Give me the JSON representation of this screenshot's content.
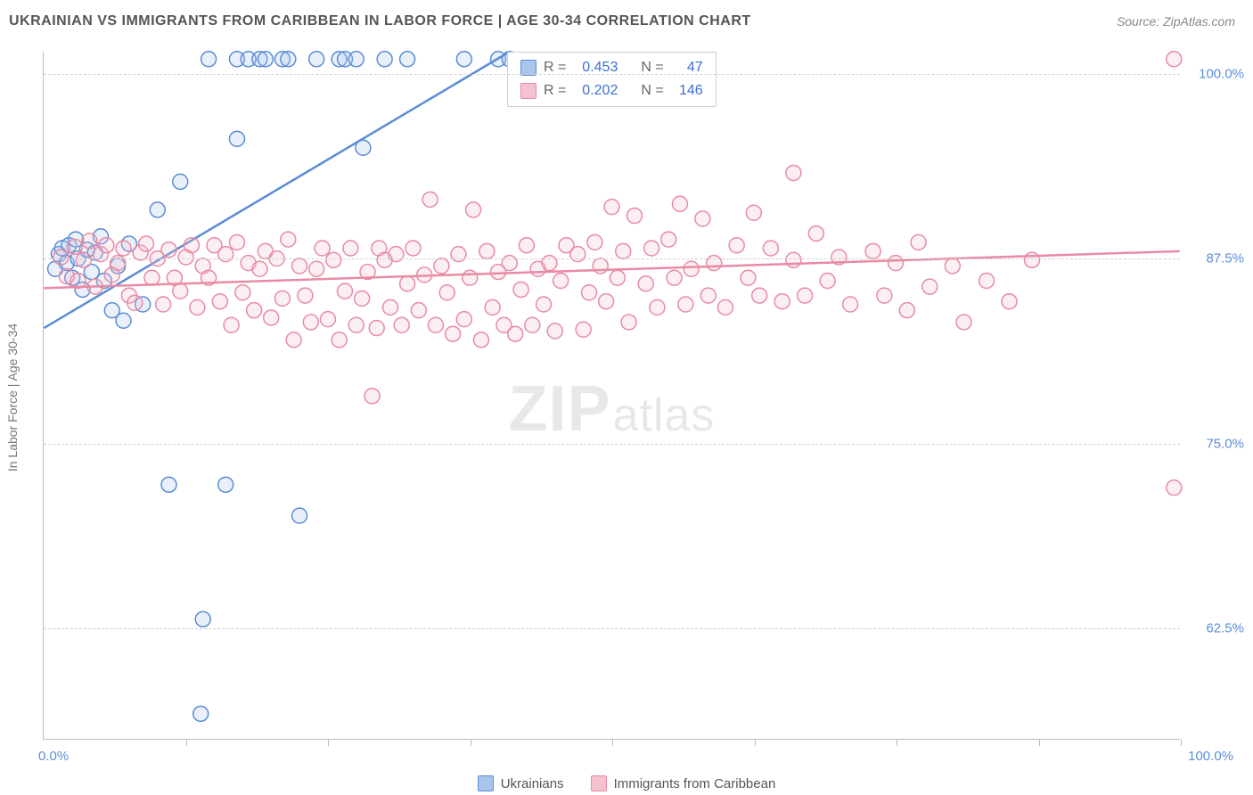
{
  "title": "UKRAINIAN VS IMMIGRANTS FROM CARIBBEAN IN LABOR FORCE | AGE 30-34 CORRELATION CHART",
  "source": "Source: ZipAtlas.com",
  "y_axis_title": "In Labor Force | Age 30-34",
  "watermark": {
    "part1": "ZIP",
    "part2": "atlas"
  },
  "chart": {
    "type": "scatter",
    "xlim": [
      0,
      100
    ],
    "ylim": [
      55,
      101.5
    ],
    "y_gridlines": [
      62.5,
      75,
      87.5,
      100
    ],
    "y_tick_labels": [
      "62.5%",
      "75.0%",
      "87.5%",
      "100.0%"
    ],
    "x_ticks": [
      12.5,
      25,
      37.5,
      50,
      62.5,
      75,
      87.5,
      100
    ],
    "x_label_min": "0.0%",
    "x_label_max": "100.0%",
    "grid_color": "#d0d0d0",
    "axis_color": "#bbbbbb",
    "marker_radius": 8.5,
    "series": [
      {
        "id": "ukr",
        "label": "Ukrainians",
        "color_stroke": "#5b8dd6",
        "color_fill": "#a9c5ec",
        "R": "0.453",
        "N": "47",
        "trend": {
          "x1": 0,
          "y1": 82.8,
          "x2": 41,
          "y2": 101.5
        },
        "points": [
          [
            1,
            86.8
          ],
          [
            1.3,
            87.8
          ],
          [
            1.6,
            88.2
          ],
          [
            2,
            87.2
          ],
          [
            2.2,
            88.4
          ],
          [
            2.5,
            86.2
          ],
          [
            2.8,
            88.8
          ],
          [
            3,
            87.5
          ],
          [
            3.4,
            85.4
          ],
          [
            3.8,
            88.1
          ],
          [
            4.2,
            86.6
          ],
          [
            4.5,
            87.9
          ],
          [
            5,
            89
          ],
          [
            5.3,
            86.0
          ],
          [
            6,
            84.0
          ],
          [
            6.5,
            87.0
          ],
          [
            7,
            83.3
          ],
          [
            7.5,
            88.5
          ],
          [
            8.7,
            84.4
          ],
          [
            10,
            90.8
          ],
          [
            11,
            72.2
          ],
          [
            12,
            92.7
          ],
          [
            13.8,
            56.7
          ],
          [
            14,
            63.1
          ],
          [
            14.5,
            101
          ],
          [
            16,
            72.2
          ],
          [
            17,
            101
          ],
          [
            17,
            95.6
          ],
          [
            18,
            101
          ],
          [
            19,
            101
          ],
          [
            19.5,
            101
          ],
          [
            21,
            101
          ],
          [
            21.5,
            101
          ],
          [
            22.5,
            70.1
          ],
          [
            24,
            101
          ],
          [
            26,
            101
          ],
          [
            26.5,
            101
          ],
          [
            27.5,
            101
          ],
          [
            28.1,
            95
          ],
          [
            30,
            101
          ],
          [
            32,
            101
          ],
          [
            37,
            101
          ],
          [
            40,
            101
          ],
          [
            41,
            101
          ]
        ]
      },
      {
        "id": "car",
        "label": "Immigrants from Caribbean",
        "color_stroke": "#e88ba3",
        "color_fill": "#f5c0cf",
        "R": "0.202",
        "N": "146",
        "trend": {
          "x1": 0,
          "y1": 85.5,
          "x2": 100,
          "y2": 88.0
        },
        "points": [
          [
            1.5,
            87.6
          ],
          [
            2,
            86.3
          ],
          [
            2.7,
            88.3
          ],
          [
            3,
            86
          ],
          [
            3.5,
            87.4
          ],
          [
            4,
            88.7
          ],
          [
            4.5,
            85.6
          ],
          [
            5,
            87.8
          ],
          [
            5.5,
            88.4
          ],
          [
            6,
            86.4
          ],
          [
            6.5,
            87.2
          ],
          [
            7,
            88.2
          ],
          [
            7.5,
            85.0
          ],
          [
            8,
            84.5
          ],
          [
            8.5,
            87.9
          ],
          [
            9,
            88.5
          ],
          [
            9.5,
            86.2
          ],
          [
            10,
            87.5
          ],
          [
            10.5,
            84.4
          ],
          [
            11,
            88.1
          ],
          [
            11.5,
            86.2
          ],
          [
            12,
            85.3
          ],
          [
            12.5,
            87.6
          ],
          [
            13,
            88.4
          ],
          [
            13.5,
            84.2
          ],
          [
            14,
            87.0
          ],
          [
            14.5,
            86.2
          ],
          [
            15,
            88.4
          ],
          [
            15.5,
            84.6
          ],
          [
            16,
            87.8
          ],
          [
            16.5,
            83.0
          ],
          [
            17,
            88.6
          ],
          [
            17.5,
            85.2
          ],
          [
            18,
            87.2
          ],
          [
            18.5,
            84.0
          ],
          [
            19,
            86.8
          ],
          [
            19.5,
            88.0
          ],
          [
            20,
            83.5
          ],
          [
            20.5,
            87.5
          ],
          [
            21,
            84.8
          ],
          [
            21.5,
            88.8
          ],
          [
            22,
            82.0
          ],
          [
            22.5,
            87.0
          ],
          [
            23,
            85.0
          ],
          [
            23.5,
            83.2
          ],
          [
            24,
            86.8
          ],
          [
            24.5,
            88.2
          ],
          [
            25,
            83.4
          ],
          [
            25.5,
            87.4
          ],
          [
            26,
            82.0
          ],
          [
            26.5,
            85.3
          ],
          [
            27,
            88.2
          ],
          [
            27.5,
            83.0
          ],
          [
            28,
            84.8
          ],
          [
            28.5,
            86.6
          ],
          [
            28.9,
            78.2
          ],
          [
            29.5,
            88.2
          ],
          [
            29.3,
            82.8
          ],
          [
            30,
            87.4
          ],
          [
            30.5,
            84.2
          ],
          [
            31,
            87.8
          ],
          [
            31.5,
            83.0
          ],
          [
            32,
            85.8
          ],
          [
            32.5,
            88.2
          ],
          [
            33,
            84.0
          ],
          [
            33.5,
            86.4
          ],
          [
            34,
            91.5
          ],
          [
            34.5,
            83.0
          ],
          [
            35,
            87.0
          ],
          [
            35.5,
            85.2
          ],
          [
            36,
            82.4
          ],
          [
            36.5,
            87.8
          ],
          [
            37,
            83.4
          ],
          [
            37.5,
            86.2
          ],
          [
            37.8,
            90.8
          ],
          [
            38.5,
            82.0
          ],
          [
            39,
            88.0
          ],
          [
            39.5,
            84.2
          ],
          [
            40,
            86.6
          ],
          [
            40.5,
            83.0
          ],
          [
            41,
            87.2
          ],
          [
            41.5,
            82.4
          ],
          [
            42,
            85.4
          ],
          [
            42.5,
            88.4
          ],
          [
            43,
            83.0
          ],
          [
            43.5,
            86.8
          ],
          [
            44,
            84.4
          ],
          [
            44.5,
            87.2
          ],
          [
            45,
            82.6
          ],
          [
            45.5,
            86.0
          ],
          [
            46,
            88.4
          ],
          [
            47,
            87.8
          ],
          [
            47.5,
            82.7
          ],
          [
            48,
            85.2
          ],
          [
            48.5,
            88.6
          ],
          [
            49,
            87.0
          ],
          [
            49.5,
            84.6
          ],
          [
            50,
            91.0
          ],
          [
            50.5,
            86.2
          ],
          [
            51,
            88.0
          ],
          [
            51.5,
            83.2
          ],
          [
            52,
            90.4
          ],
          [
            53,
            85.8
          ],
          [
            53.5,
            88.2
          ],
          [
            54,
            84.2
          ],
          [
            55,
            88.8
          ],
          [
            55.5,
            86.2
          ],
          [
            56,
            91.2
          ],
          [
            56.5,
            84.4
          ],
          [
            57,
            86.8
          ],
          [
            58,
            90.2
          ],
          [
            58.5,
            85.0
          ],
          [
            59,
            87.2
          ],
          [
            60,
            84.2
          ],
          [
            61,
            88.4
          ],
          [
            62,
            86.2
          ],
          [
            62.5,
            90.6
          ],
          [
            63,
            85.0
          ],
          [
            64,
            88.2
          ],
          [
            65,
            84.6
          ],
          [
            66,
            93.3
          ],
          [
            66,
            87.4
          ],
          [
            67,
            85.0
          ],
          [
            68,
            89.2
          ],
          [
            69,
            86.0
          ],
          [
            70,
            87.6
          ],
          [
            71,
            84.4
          ],
          [
            73,
            88.0
          ],
          [
            74,
            85.0
          ],
          [
            75,
            87.2
          ],
          [
            76,
            84.0
          ],
          [
            77,
            88.6
          ],
          [
            78,
            85.6
          ],
          [
            80,
            87.0
          ],
          [
            81,
            83.2
          ],
          [
            83,
            86.0
          ],
          [
            85,
            84.6
          ],
          [
            87,
            87.4
          ],
          [
            99.5,
            101
          ],
          [
            99.5,
            72
          ]
        ]
      }
    ]
  },
  "stats_box": {
    "rows": [
      {
        "series": "ukr",
        "R_label": "R =",
        "N_label": "N ="
      },
      {
        "series": "car",
        "R_label": "R =",
        "N_label": "N ="
      }
    ]
  }
}
